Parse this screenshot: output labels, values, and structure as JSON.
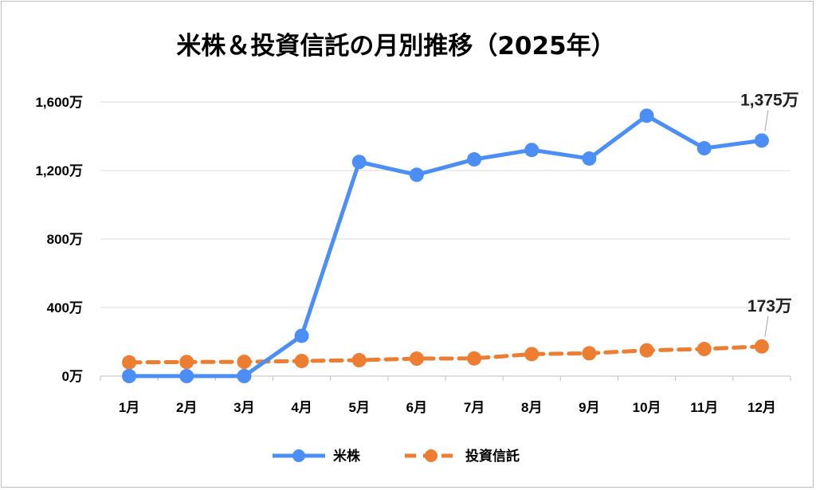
{
  "chart_data": {
    "type": "line",
    "title": "米株＆投資信託の月別推移（2025年）",
    "xlabel": "",
    "ylabel": "",
    "categories": [
      "1月",
      "2月",
      "3月",
      "4月",
      "5月",
      "6月",
      "7月",
      "8月",
      "9月",
      "10月",
      "11月",
      "12月"
    ],
    "ylim": [
      0,
      1600
    ],
    "yticks": [
      {
        "value": 0,
        "label": "0万"
      },
      {
        "value": 400,
        "label": "400万"
      },
      {
        "value": 800,
        "label": "800万"
      },
      {
        "value": 1200,
        "label": "1,200万"
      },
      {
        "value": 1600,
        "label": "1,600万"
      }
    ],
    "grid": true,
    "legend": "bottom",
    "series": [
      {
        "name": "米株",
        "color": "#4a8ef6",
        "style": "solid",
        "values": [
          0,
          0,
          0,
          235,
          1250,
          1175,
          1265,
          1320,
          1270,
          1520,
          1330,
          1375
        ],
        "last_label": "1,375万"
      },
      {
        "name": "投資信託",
        "color": "#ed7d31",
        "style": "dashed",
        "values": [
          80,
          82,
          83,
          88,
          93,
          102,
          103,
          128,
          133,
          150,
          158,
          173
        ],
        "last_label": "173万"
      }
    ]
  }
}
